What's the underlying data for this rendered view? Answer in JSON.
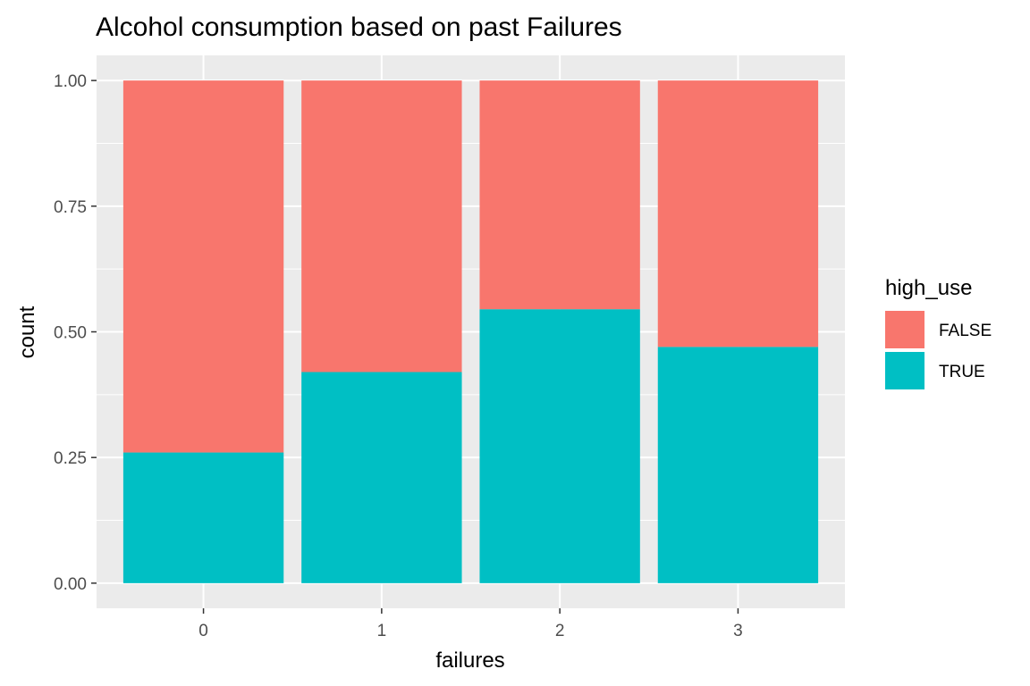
{
  "chart_data": {
    "type": "bar",
    "stacked": true,
    "title": "Alcohol consumption based on past Failures",
    "xlabel": "failures",
    "ylabel": "count",
    "categories": [
      "0",
      "1",
      "2",
      "3"
    ],
    "series": [
      {
        "name": "TRUE",
        "color": "#00BFC4",
        "values": [
          0.26,
          0.42,
          0.545,
          0.47
        ]
      },
      {
        "name": "FALSE",
        "color": "#F8766D",
        "values": [
          0.74,
          0.58,
          0.455,
          0.53
        ]
      }
    ],
    "ylim": [
      -0.05,
      1.05
    ],
    "yticks": [
      {
        "value": 0.0,
        "label": "0.00"
      },
      {
        "value": 0.25,
        "label": "0.25"
      },
      {
        "value": 0.5,
        "label": "0.50"
      },
      {
        "value": 0.75,
        "label": "0.75"
      },
      {
        "value": 1.0,
        "label": "1.00"
      }
    ],
    "grid": true,
    "legend": {
      "title": "high_use",
      "position": "right",
      "entries": [
        {
          "label": "FALSE",
          "color": "#F8766D"
        },
        {
          "label": "TRUE",
          "color": "#00BFC4"
        }
      ]
    },
    "panel_color": "#EBEBEB",
    "grid_color": "#FFFFFF"
  }
}
